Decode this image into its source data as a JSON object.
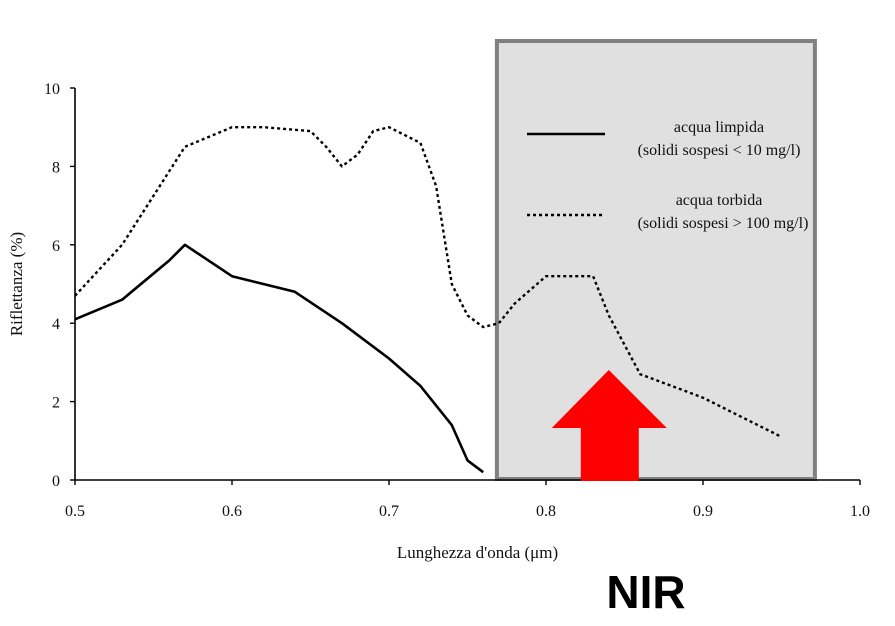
{
  "chart_data": {
    "type": "line",
    "title": "",
    "xlabel": "Lunghezza d'onda (μm)",
    "ylabel": "Riflettanza (%)",
    "xlim": [
      0.5,
      1.0
    ],
    "ylim": [
      0,
      10
    ],
    "xticks": [
      "0.5",
      "0.6",
      "0.7",
      "0.8",
      "0.9",
      "1.0"
    ],
    "yticks": [
      "0",
      "2",
      "4",
      "6",
      "8",
      "10"
    ],
    "grid": false,
    "series": [
      {
        "name": "acqua limpida",
        "legend_detail": "(solidi sospesi < 10 mg/l)",
        "style": "solid",
        "color": "#000000",
        "x": [
          0.5,
          0.53,
          0.56,
          0.57,
          0.6,
          0.64,
          0.67,
          0.7,
          0.72,
          0.74,
          0.75,
          0.76
        ],
        "y": [
          4.1,
          4.6,
          5.6,
          6.0,
          5.2,
          4.8,
          4.0,
          3.1,
          2.4,
          1.4,
          0.5,
          0.2
        ]
      },
      {
        "name": "acqua torbida",
        "legend_detail": "(solidi sospesi > 100 mg/l)",
        "style": "dotted",
        "color": "#000000",
        "x": [
          0.5,
          0.53,
          0.57,
          0.6,
          0.62,
          0.65,
          0.66,
          0.67,
          0.68,
          0.69,
          0.7,
          0.72,
          0.73,
          0.74,
          0.75,
          0.76,
          0.77,
          0.78,
          0.8,
          0.83,
          0.84,
          0.86,
          0.88,
          0.9,
          0.92,
          0.95
        ],
        "y": [
          4.7,
          6.0,
          8.5,
          9.0,
          9.0,
          8.9,
          8.5,
          8.0,
          8.3,
          8.9,
          9.0,
          8.6,
          7.5,
          5.0,
          4.2,
          3.9,
          4.0,
          4.5,
          5.2,
          5.2,
          4.2,
          2.7,
          2.4,
          2.1,
          1.7,
          1.1
        ]
      }
    ],
    "legend_position": "top-right",
    "annotation": {
      "highlight_range_x": [
        0.77,
        0.97
      ],
      "arrow_at_x": 0.84,
      "label": "NIR",
      "highlight_color": "#e0e0e0",
      "border_color": "#808080",
      "arrow_color": "#ff0000"
    }
  }
}
